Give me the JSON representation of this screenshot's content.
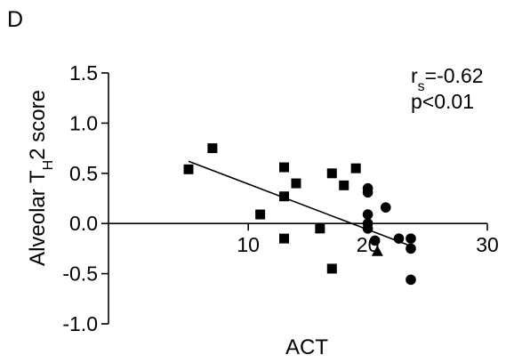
{
  "panel_label": "D",
  "chart_data": {
    "type": "scatter",
    "xlabel": "ACT",
    "ylabel": "Alveolar T",
    "ylabel_subscript": "H",
    "ylabel_suffix": "2 score",
    "xlim": [
      5,
      30
    ],
    "ylim": [
      -1.0,
      1.5
    ],
    "x_ticks": [
      10,
      20,
      30
    ],
    "x_tick_labels": [
      "10",
      "20",
      "30"
    ],
    "y_ticks": [
      1.5,
      1.0,
      0.5,
      0.0,
      -0.5,
      -1.0
    ],
    "y_tick_labels": [
      "1.5",
      "1.0",
      "0.5",
      "0.0",
      "-0.5",
      "-1.0"
    ],
    "grid": false,
    "annotation": {
      "r_prefix": "r",
      "r_subscript": "s",
      "r_value": "=-0.62",
      "p_text": "p<0.01"
    },
    "series": [
      {
        "marker": "square",
        "points": [
          {
            "x": 5,
            "y": 0.54
          },
          {
            "x": 7,
            "y": 0.75
          },
          {
            "x": 11,
            "y": 0.09
          },
          {
            "x": 13,
            "y": 0.56
          },
          {
            "x": 13,
            "y": 0.27
          },
          {
            "x": 13,
            "y": -0.15
          },
          {
            "x": 14,
            "y": 0.4
          },
          {
            "x": 16,
            "y": -0.05
          },
          {
            "x": 17,
            "y": 0.5
          },
          {
            "x": 17,
            "y": -0.45
          },
          {
            "x": 18,
            "y": 0.38
          },
          {
            "x": 19,
            "y": 0.55
          }
        ]
      },
      {
        "marker": "circle",
        "points": [
          {
            "x": 20,
            "y": 0.35
          },
          {
            "x": 20,
            "y": 0.31
          },
          {
            "x": 20,
            "y": 0.09
          },
          {
            "x": 20,
            "y": 0.0
          },
          {
            "x": 20,
            "y": -0.05
          },
          {
            "x": 20.6,
            "y": -0.17
          },
          {
            "x": 21.5,
            "y": 0.16
          },
          {
            "x": 22.6,
            "y": -0.15
          },
          {
            "x": 23.6,
            "y": -0.15
          },
          {
            "x": 23.6,
            "y": -0.25
          },
          {
            "x": 23.6,
            "y": -0.56
          }
        ]
      },
      {
        "marker": "triangle",
        "points": [
          {
            "x": 20.8,
            "y": -0.28
          }
        ]
      }
    ],
    "fit_line": {
      "x": [
        5,
        23.5
      ],
      "y": [
        0.62,
        -0.22
      ]
    }
  }
}
